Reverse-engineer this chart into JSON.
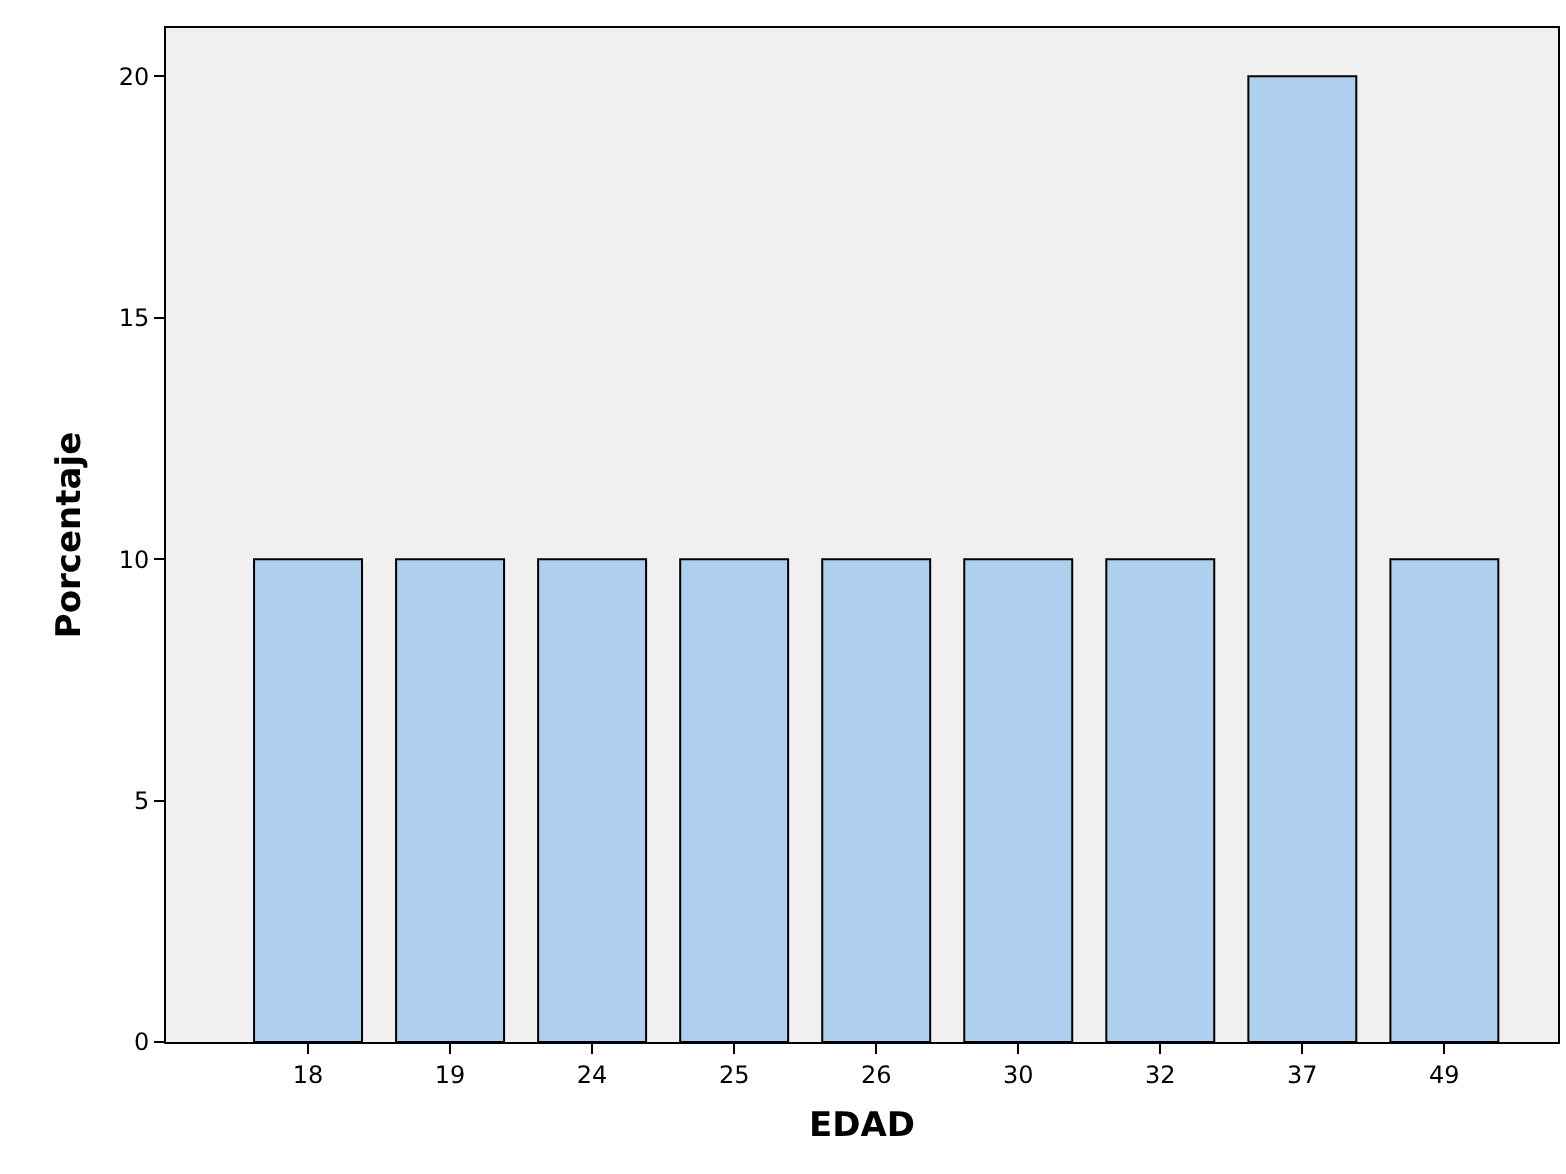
{
  "chart_data": {
    "type": "bar",
    "xlabel": "EDAD",
    "ylabel": "Porcentaje",
    "categories": [
      "18",
      "19",
      "24",
      "25",
      "26",
      "30",
      "32",
      "37",
      "49"
    ],
    "values": [
      10,
      10,
      10,
      10,
      10,
      10,
      10,
      20,
      10
    ],
    "color": "#aed0ee",
    "ylim": [
      0,
      21
    ],
    "yticks": [
      0,
      5,
      10,
      15,
      20
    ],
    "grid": false
  }
}
